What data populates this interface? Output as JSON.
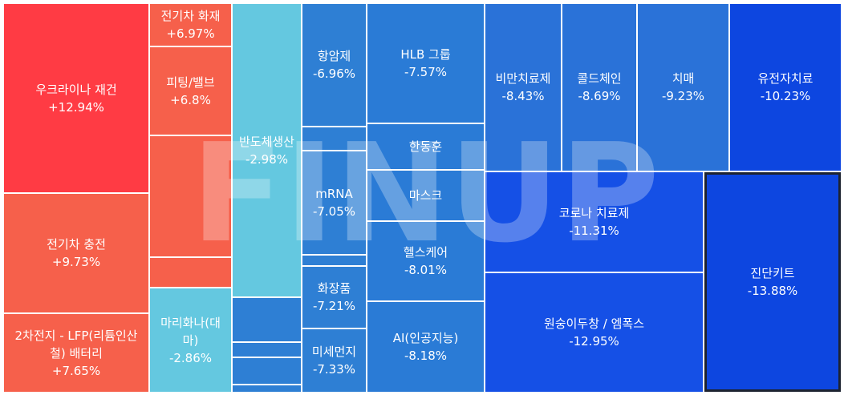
{
  "watermark_text": "FINUP",
  "colors": {
    "red_strong": "#ff3b44",
    "red": "#f6604b",
    "red_light": "#f47064",
    "cyan": "#64c8e0",
    "blue_light": "#2e7fd4",
    "blue_mid": "#2a6fd9",
    "blue": "#1550e6",
    "blue_dark": "#0d46e0",
    "selected_border": "#1d2330"
  },
  "tiles": [
    {
      "id": "ukraine-reconstruction",
      "name": "우크라이나 재건",
      "change": "+12.94%",
      "color": "#ff3b44"
    },
    {
      "id": "ev-charging",
      "name": "전기차 충전",
      "change": "+9.73%",
      "color": "#f6604b"
    },
    {
      "id": "lfp-battery",
      "name": "2차전지 - LFP(리튬인산철) 배터리",
      "change": "+7.65%",
      "color": "#f6604b"
    },
    {
      "id": "ev-fire",
      "name": "전기차 화재",
      "change": "+6.97%",
      "color": "#f6604b"
    },
    {
      "id": "fitting-valve",
      "name": "피팅/밸브",
      "change": "+6.8%",
      "color": "#f6604b"
    },
    {
      "id": "small-red-a",
      "name": "",
      "change": "",
      "color": "#f6604b"
    },
    {
      "id": "small-red-b",
      "name": "",
      "change": "",
      "color": "#f6604b"
    },
    {
      "id": "cannabis",
      "name": "마리화나(대마)",
      "change": "-2.86%",
      "color": "#64c8e0"
    },
    {
      "id": "semiconductor-production",
      "name": "반도체생산",
      "change": "-2.98%",
      "color": "#64c8e0"
    },
    {
      "id": "small-blue-a",
      "name": "",
      "change": "",
      "color": "#2e7fd4"
    },
    {
      "id": "small-blue-b",
      "name": "",
      "change": "",
      "color": "#2e7fd4"
    },
    {
      "id": "small-blue-c",
      "name": "",
      "change": "",
      "color": "#2e7fd4"
    },
    {
      "id": "small-blue-d",
      "name": "",
      "change": "",
      "color": "#2e7fd4"
    },
    {
      "id": "anticancer",
      "name": "항암제",
      "change": "-6.96%",
      "color": "#2e7fd4"
    },
    {
      "id": "small-blue-e",
      "name": "",
      "change": "",
      "color": "#2e7fd4"
    },
    {
      "id": "mrna",
      "name": "mRNA",
      "change": "-7.05%",
      "color": "#2e7fd4"
    },
    {
      "id": "small-blue-f",
      "name": "",
      "change": "",
      "color": "#2e7fd4"
    },
    {
      "id": "cosmetics",
      "name": "화장품",
      "change": "-7.21%",
      "color": "#2e7fd4"
    },
    {
      "id": "fine-dust",
      "name": "미세먼지",
      "change": "-7.33%",
      "color": "#2e7fd4"
    },
    {
      "id": "hlb-group",
      "name": "HLB 그룹",
      "change": "-7.57%",
      "color": "#2a7bd6"
    },
    {
      "id": "handonghun",
      "name": "한동훈",
      "change": "",
      "color": "#2a7bd6"
    },
    {
      "id": "mask",
      "name": "마스크",
      "change": "",
      "color": "#2a7bd6"
    },
    {
      "id": "healthcare",
      "name": "헬스케어",
      "change": "-8.01%",
      "color": "#2a7bd6"
    },
    {
      "id": "ai",
      "name": "AI(인공지능)",
      "change": "-8.18%",
      "color": "#2a7bd6"
    },
    {
      "id": "obesity-treatment",
      "name": "비만치료제",
      "change": "-8.43%",
      "color": "#2a72d8"
    },
    {
      "id": "cold-chain",
      "name": "콜드체인",
      "change": "-8.69%",
      "color": "#2a72d8"
    },
    {
      "id": "dementia",
      "name": "치매",
      "change": "-9.23%",
      "color": "#2a72d8"
    },
    {
      "id": "gene-therapy",
      "name": "유전자치료",
      "change": "-10.23%",
      "color": "#0d46e0"
    },
    {
      "id": "covid-treatment",
      "name": "코로나 치료제",
      "change": "-11.31%",
      "color": "#1550e6"
    },
    {
      "id": "monkeypox",
      "name": "원숭이두창 / 엠폭스",
      "change": "-12.95%",
      "color": "#1550e6"
    },
    {
      "id": "diagnostic-kit",
      "name": "진단키트",
      "change": "-13.88%",
      "color": "#0d46e0",
      "selected": true
    }
  ]
}
